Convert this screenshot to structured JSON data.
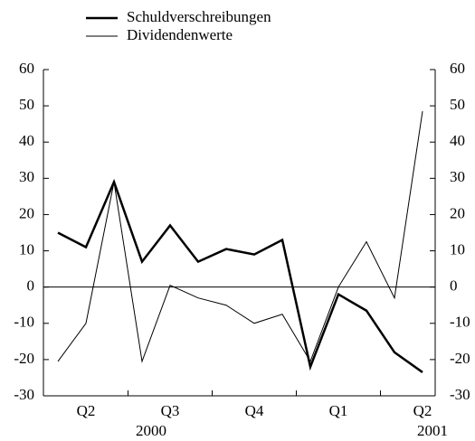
{
  "chart_data": {
    "type": "line",
    "categories": [
      null,
      "Q2",
      null,
      null,
      "Q3",
      null,
      null,
      "Q4",
      null,
      null,
      "Q1",
      null,
      null,
      "Q2"
    ],
    "year_labels": [
      "2000",
      "2001"
    ],
    "series": [
      {
        "name": "Schuldverschreibungen",
        "color": "#000000",
        "width": 2.5,
        "values": [
          15,
          11,
          29,
          7,
          17,
          7,
          10.5,
          9,
          13,
          -22,
          -2,
          -6.5,
          -18,
          -23.5
        ]
      },
      {
        "name": "Dividendenwerte",
        "color": "#000000",
        "width": 1,
        "values": [
          -20.5,
          -10,
          29,
          -20.5,
          0.5,
          -3,
          -5,
          -10,
          -7.5,
          -20.5,
          0,
          12.5,
          -3,
          48.5
        ]
      }
    ],
    "ylim": [
      -30,
      60
    ],
    "yticks": [
      -30,
      -20,
      -10,
      0,
      10,
      20,
      30,
      40,
      50,
      60
    ],
    "y2lim": [
      -30,
      60
    ],
    "y2ticks": [
      -30,
      -20,
      -10,
      0,
      10,
      20,
      30,
      40,
      50,
      60
    ]
  }
}
